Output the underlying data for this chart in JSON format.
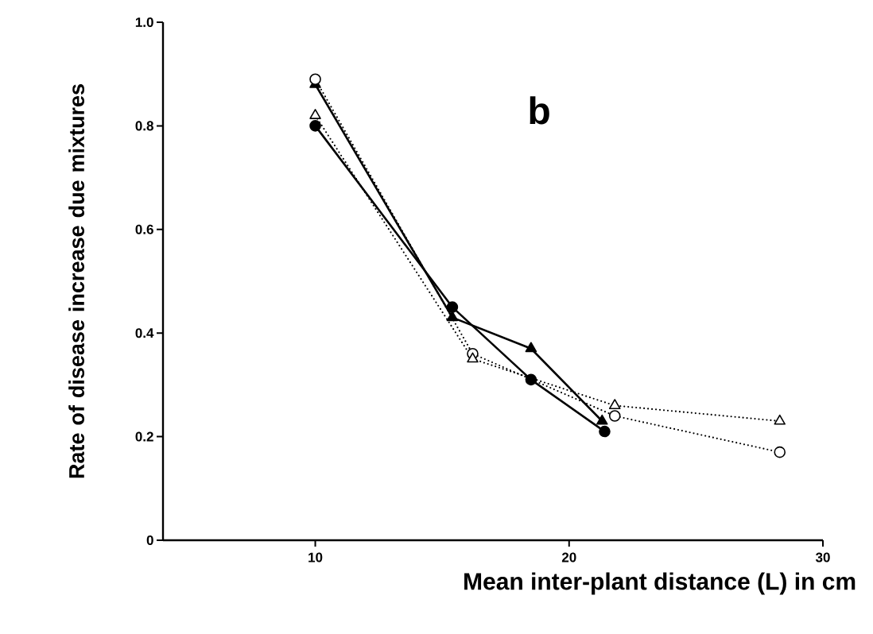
{
  "chart_data": {
    "type": "line",
    "xlabel": "Mean inter-plant distance (L) in cm",
    "ylabel": "Rate of disease increase due mixtures",
    "annotations": [
      "b"
    ],
    "xlim": [
      4,
      30
    ],
    "xticks": [
      10,
      20,
      30
    ],
    "ylim": [
      0,
      1.0
    ],
    "yticks": [
      0,
      0.2,
      0.4,
      0.6,
      0.8,
      {
        "value": 1.0,
        "label": "1.0"
      }
    ],
    "grid": false,
    "series": [
      {
        "color": "#000000",
        "marker": "circle",
        "line_style": "solid",
        "x": [
          10,
          15.4,
          18.5,
          21.4
        ],
        "values": [
          0.8,
          0.45,
          0.31,
          0.21
        ]
      },
      {
        "color": "#000000",
        "marker": "triangle",
        "line_style": "solid",
        "x": [
          10,
          15.4,
          18.5,
          21.3
        ],
        "values": [
          0.88,
          0.43,
          0.37,
          0.23
        ]
      },
      {
        "color": "#000000",
        "marker": "circle",
        "line_style": "dotted",
        "x": [
          10,
          16.2,
          21.8,
          28.3
        ],
        "values": [
          0.89,
          0.36,
          0.24,
          0.17
        ]
      },
      {
        "color": "#000000",
        "marker": "triangle",
        "line_style": "dotted",
        "x": [
          10,
          16.2,
          21.8,
          28.3
        ],
        "values": [
          0.82,
          0.35,
          0.26,
          0.23
        ]
      }
    ]
  }
}
